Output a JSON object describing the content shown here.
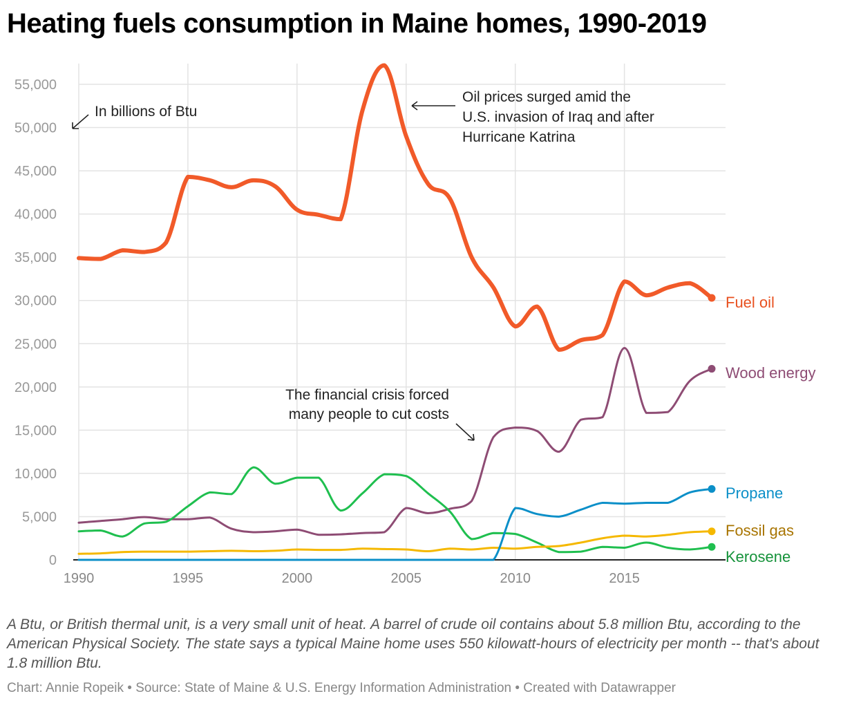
{
  "title": "Heating fuels consumption in Maine homes, 1990-2019",
  "notes": "A Btu, or British thermal unit, is a very small unit of heat. A barrel of crude oil contains about 5.8 million Btu, according to the American Physical Society. The state says a typical Maine home uses 550 kilowatt-hours of electricity per month -- that's about 1.8 million Btu.",
  "footer": "Chart: Annie Ropeik • Source: State of Maine & U.S. Energy Information Administration • Created with Datawrapper",
  "chart_data": {
    "type": "line",
    "title": "Heating fuels consumption in Maine homes, 1990-2019",
    "unit_note": "In billions of Btu",
    "xlim": [
      1990,
      2019
    ],
    "ylim": [
      0,
      57500
    ],
    "x_ticks": [
      1990,
      1995,
      2000,
      2005,
      2010,
      2015
    ],
    "y_ticks": [
      0,
      5000,
      10000,
      15000,
      20000,
      25000,
      30000,
      35000,
      40000,
      45000,
      50000,
      55000
    ],
    "y_tick_labels": [
      "0",
      "5,000",
      "10,000",
      "15,000",
      "20,000",
      "25,000",
      "30,000",
      "35,000",
      "40,000",
      "45,000",
      "50,000",
      "55,000"
    ],
    "grid": true,
    "legend": "direct labels at line ends (right)",
    "x": [
      1990,
      1991,
      1992,
      1993,
      1994,
      1995,
      1996,
      1997,
      1998,
      1999,
      2000,
      2001,
      2002,
      2003,
      2004,
      2005,
      2006,
      2007,
      2008,
      2009,
      2010,
      2011,
      2012,
      2013,
      2014,
      2015,
      2016,
      2017,
      2018,
      2019
    ],
    "series": [
      {
        "name": "Fuel oil",
        "color": "#f15a29",
        "label_color": "#e8501f",
        "width": 6,
        "values": [
          34900,
          34800,
          35800,
          35600,
          36700,
          44300,
          43900,
          43100,
          43900,
          43200,
          40500,
          39900,
          39400,
          52000,
          57200,
          49000,
          43500,
          41800,
          35000,
          31500,
          27000,
          29300,
          24300,
          25400,
          26000,
          32200,
          30600,
          31500,
          32000,
          30300
        ]
      },
      {
        "name": "Wood energy",
        "color": "#8e4c74",
        "label_color": "#8e4c74",
        "width": 3,
        "values": [
          4300,
          4500,
          4700,
          4950,
          4700,
          4700,
          4900,
          3600,
          3200,
          3300,
          3500,
          2900,
          2950,
          3100,
          3200,
          6000,
          5400,
          5900,
          6800,
          14200,
          15300,
          14900,
          12500,
          16200,
          16500,
          24500,
          17000,
          17100,
          20700,
          22100
        ]
      },
      {
        "name": "Kerosene",
        "color": "#1fbf4f",
        "label_color": "#15923a",
        "width": 3,
        "values": [
          3300,
          3400,
          2700,
          4200,
          4400,
          6200,
          7800,
          7600,
          10700,
          8800,
          9500,
          9500,
          5700,
          7700,
          9900,
          9700,
          7700,
          5600,
          2400,
          3100,
          3000,
          2000,
          900,
          950,
          1500,
          1400,
          2000,
          1400,
          1200,
          1500
        ]
      },
      {
        "name": "Fossil gas",
        "color": "#f5b800",
        "label_color": "#a87400",
        "width": 3,
        "values": [
          700,
          750,
          900,
          950,
          950,
          950,
          1000,
          1050,
          1000,
          1050,
          1200,
          1150,
          1150,
          1300,
          1250,
          1200,
          1000,
          1300,
          1200,
          1400,
          1300,
          1500,
          1600,
          2000,
          2500,
          2800,
          2700,
          2900,
          3200,
          3300
        ]
      },
      {
        "name": "Propane",
        "color": "#0b8fc8",
        "label_color": "#0b8fc8",
        "width": 3,
        "values": [
          0,
          0,
          0,
          0,
          0,
          0,
          0,
          0,
          0,
          0,
          0,
          0,
          0,
          0,
          0,
          0,
          0,
          0,
          0,
          0,
          6000,
          5300,
          5000,
          5800,
          6600,
          6500,
          6600,
          6600,
          7800,
          8200
        ]
      }
    ],
    "annotations": [
      {
        "text_lines": [
          "Oil prices surged amid the",
          "U.S. invasion of Iraq and after",
          "Hurricane Katrina"
        ]
      },
      {
        "text_lines": [
          "The financial crisis forced",
          "many people to cut costs"
        ]
      }
    ]
  }
}
